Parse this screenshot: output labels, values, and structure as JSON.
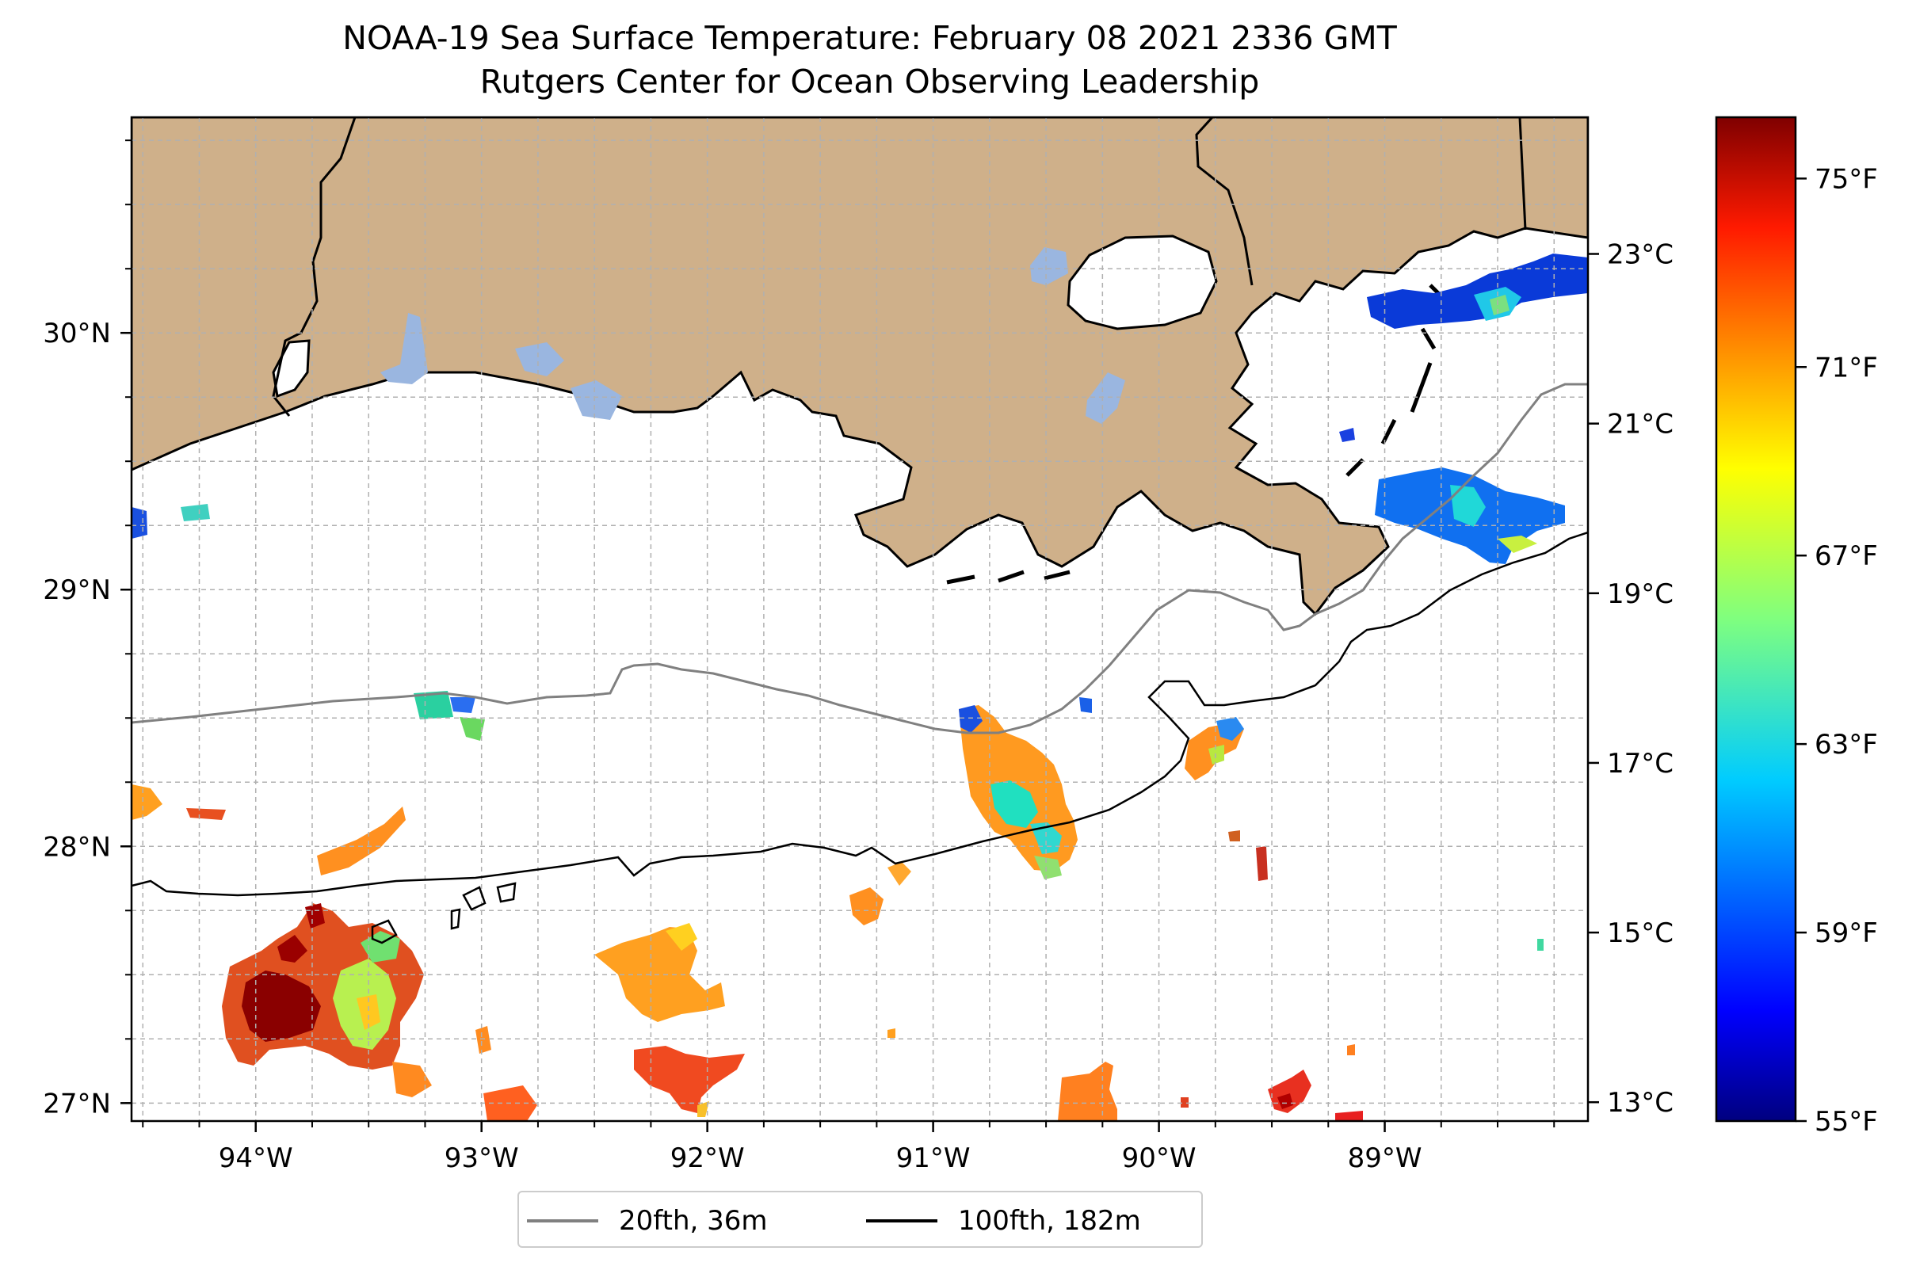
{
  "title": "NOAA-19 Sea Surface Temperature: February 08 2021 2336 GMT",
  "subtitle": "Rutgers Center for Ocean Observing Leadership",
  "map": {
    "lon_range": [
      -94.55,
      -88.1
    ],
    "lat_range": [
      26.93,
      30.84
    ],
    "lon_ticks": [
      {
        "value": -94,
        "label": "94°W"
      },
      {
        "value": -93,
        "label": "93°W"
      },
      {
        "value": -92,
        "label": "92°W"
      },
      {
        "value": -91,
        "label": "91°W"
      },
      {
        "value": -90,
        "label": "90°W"
      },
      {
        "value": -89,
        "label": "89°W"
      }
    ],
    "lat_ticks": [
      {
        "value": 30,
        "label": "30°N"
      },
      {
        "value": 29,
        "label": "29°N"
      },
      {
        "value": 28,
        "label": "28°N"
      },
      {
        "value": 27,
        "label": "27°N"
      }
    ],
    "gridlines": "dashed",
    "land_color": "#cfb08a",
    "lake_color": "#9ab6e0"
  },
  "colorbar": {
    "colormap": "jet",
    "range_f": [
      55,
      76.3
    ],
    "fahrenheit_ticks": [
      {
        "value": 75,
        "label": "75°F"
      },
      {
        "value": 71,
        "label": "71°F"
      },
      {
        "value": 67,
        "label": "67°F"
      },
      {
        "value": 63,
        "label": "63°F"
      },
      {
        "value": 59,
        "label": "59°F"
      },
      {
        "value": 55,
        "label": "55°F"
      }
    ],
    "celsius_ticks": [
      {
        "value": 23,
        "label": "23°C"
      },
      {
        "value": 21,
        "label": "21°C"
      },
      {
        "value": 19,
        "label": "19°C"
      },
      {
        "value": 17,
        "label": "17°C"
      },
      {
        "value": 15,
        "label": "15°C"
      },
      {
        "value": 13,
        "label": "13°C"
      }
    ]
  },
  "legend": {
    "items": [
      {
        "label": "20fth, 36m",
        "color": "#808080"
      },
      {
        "label": "100fth, 182m",
        "color": "#000000"
      }
    ]
  }
}
